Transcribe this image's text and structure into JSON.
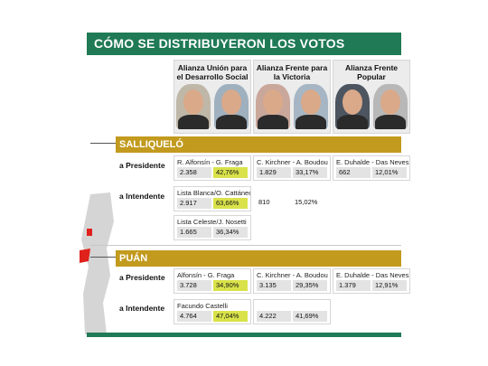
{
  "title": "CÓMO SE DISTRIBUYERON LOS VOTOS",
  "alliances": [
    {
      "name": "Alianza Unión para el Desarrollo Social"
    },
    {
      "name": "Alianza Frente para la Victoria"
    },
    {
      "name": "Alianza Frente Popular"
    }
  ],
  "sections": [
    {
      "name": "SALLIQUELÓ",
      "presidente_label": "a Presidente",
      "intendente_label": "a Intendente",
      "presidente": [
        {
          "cand": "R. Alfonsín - G. Fraga",
          "votes": "2.358",
          "pct": "42,76%"
        },
        {
          "cand": "C. Kirchner - A. Boudou",
          "votes": "1.829",
          "pct": "33,17%"
        },
        {
          "cand": "E. Duhalde - Das Neves",
          "votes": "662",
          "pct": "12,01%"
        }
      ],
      "intendente": [
        {
          "cand": "Lista Blanca/O. Cattáneo",
          "votes": "2.917",
          "pct": "63,66%"
        },
        {
          "cand": "",
          "votes": "810",
          "pct": "15,02%"
        },
        {
          "cand": "Lista Celeste/J. Nosetti",
          "votes": "1.665",
          "pct": "36,34%"
        }
      ]
    },
    {
      "name": "PUÁN",
      "presidente_label": "a Presidente",
      "intendente_label": "a Intendente",
      "presidente": [
        {
          "cand": "Alfonsín - G. Fraga",
          "votes": "3.728",
          "pct": "34,90%"
        },
        {
          "cand": "C. Kirchner - A. Boudou",
          "votes": "3.135",
          "pct": "29,35%"
        },
        {
          "cand": "E. Duhalde - Das Neves",
          "votes": "1.379",
          "pct": "12,91%"
        }
      ],
      "intendente": [
        {
          "cand": "Facundo Castelli",
          "votes": "4.764",
          "pct": "47,04%"
        },
        {
          "cand": "",
          "votes": "4.222",
          "pct": "41,69%"
        }
      ]
    }
  ],
  "colors": {
    "green": "#1f7a55",
    "gold": "#c29a1e",
    "highlight": "#d9e24a",
    "map_red": "#e0211b"
  }
}
